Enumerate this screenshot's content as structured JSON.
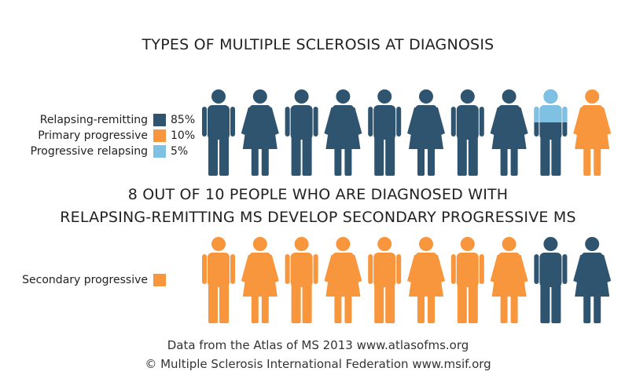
{
  "title": "TYPES OF MULTIPLE SCLEROSIS AT DIAGNOSIS",
  "subtitle_line1": "8 OUT OF 10 PEOPLE WHO ARE DIAGNOSED WITH",
  "subtitle_line2": "RELAPSING-REMITTING MS DEVELOP SECONDARY PROGRESSIVE MS",
  "colors": {
    "dark_blue": "#2e5470",
    "orange": "#f7963d",
    "light_blue": "#7fc1e3"
  },
  "legend_top": [
    {
      "label": "Relapsing-remitting",
      "value": "85%",
      "color": "#2e5470"
    },
    {
      "label": "Primary progressive",
      "value": "10%",
      "color": "#f7963d"
    },
    {
      "label": "Progressive relapsing",
      "value": "5%",
      "color": "#7fc1e3"
    }
  ],
  "legend_bottom": [
    {
      "label": "Secondary progressive",
      "color": "#f7963d"
    }
  ],
  "footer": {
    "line1": "Data from the Atlas of MS 2013 www.atlasofms.org",
    "line2": "© Multiple Sclerosis International Federation www.msif.org"
  },
  "chart_data": [
    {
      "type": "pictogram",
      "title": "TYPES OF MULTIPLE SCLEROSIS AT DIAGNOSIS",
      "total_icons": 10,
      "series": [
        {
          "name": "Relapsing-remitting",
          "value_percent": 85,
          "color": "#2e5470"
        },
        {
          "name": "Primary progressive",
          "value_percent": 10,
          "color": "#f7963d"
        },
        {
          "name": "Progressive relapsing",
          "value_percent": 5,
          "color": "#7fc1e3"
        }
      ],
      "icons": [
        {
          "figure": "male",
          "fill": "#2e5470"
        },
        {
          "figure": "female",
          "fill": "#2e5470"
        },
        {
          "figure": "male",
          "fill": "#2e5470"
        },
        {
          "figure": "female",
          "fill": "#2e5470"
        },
        {
          "figure": "male",
          "fill": "#2e5470"
        },
        {
          "figure": "female",
          "fill": "#2e5470"
        },
        {
          "figure": "male",
          "fill": "#2e5470"
        },
        {
          "figure": "female",
          "fill": "#2e5470"
        },
        {
          "figure": "male",
          "fill": "#2e5470",
          "top_fill": "#7fc1e3",
          "top_fraction": 0.5
        },
        {
          "figure": "female",
          "fill": "#f7963d"
        }
      ]
    },
    {
      "type": "pictogram",
      "title": "8 OUT OF 10 PEOPLE WHO ARE DIAGNOSED WITH RELAPSING-REMITTING MS DEVELOP SECONDARY PROGRESSIVE MS",
      "total_icons": 10,
      "series": [
        {
          "name": "Secondary progressive",
          "count": 8,
          "color": "#f7963d"
        }
      ],
      "icons": [
        {
          "figure": "male",
          "fill": "#f7963d"
        },
        {
          "figure": "female",
          "fill": "#f7963d"
        },
        {
          "figure": "male",
          "fill": "#f7963d"
        },
        {
          "figure": "female",
          "fill": "#f7963d"
        },
        {
          "figure": "male",
          "fill": "#f7963d"
        },
        {
          "figure": "female",
          "fill": "#f7963d"
        },
        {
          "figure": "male",
          "fill": "#f7963d"
        },
        {
          "figure": "female",
          "fill": "#f7963d"
        },
        {
          "figure": "male",
          "fill": "#2e5470"
        },
        {
          "figure": "female",
          "fill": "#2e5470"
        }
      ]
    }
  ]
}
